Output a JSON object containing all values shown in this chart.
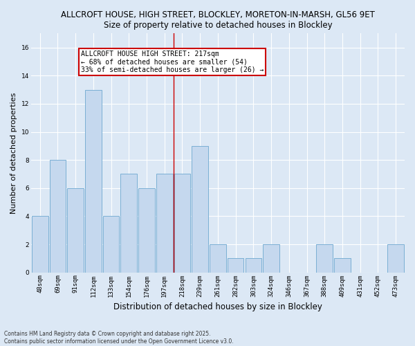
{
  "title1": "ALLCROFT HOUSE, HIGH STREET, BLOCKLEY, MORETON-IN-MARSH, GL56 9ET",
  "title2": "Size of property relative to detached houses in Blockley",
  "xlabel": "Distribution of detached houses by size in Blockley",
  "ylabel": "Number of detached properties",
  "categories": [
    "48sqm",
    "69sqm",
    "91sqm",
    "112sqm",
    "133sqm",
    "154sqm",
    "176sqm",
    "197sqm",
    "218sqm",
    "239sqm",
    "261sqm",
    "282sqm",
    "303sqm",
    "324sqm",
    "346sqm",
    "367sqm",
    "388sqm",
    "409sqm",
    "431sqm",
    "452sqm",
    "473sqm"
  ],
  "values": [
    4,
    8,
    6,
    13,
    4,
    7,
    6,
    7,
    7,
    9,
    2,
    1,
    1,
    2,
    0,
    0,
    2,
    1,
    0,
    0,
    2
  ],
  "bar_color": "#c5d8ee",
  "bar_edge_color": "#7aafd4",
  "vline_color": "#cc0000",
  "vline_x": 7.5,
  "annotation_text_line1": "ALLCROFT HOUSE HIGH STREET: 217sqm",
  "annotation_text_line2": "← 68% of detached houses are smaller (54)",
  "annotation_text_line3": "33% of semi-detached houses are larger (26) →",
  "annotation_box_color": "#ffffff",
  "annotation_box_edge": "#cc0000",
  "ylim": [
    0,
    17
  ],
  "yticks": [
    0,
    2,
    4,
    6,
    8,
    10,
    12,
    14,
    16
  ],
  "footnote": "Contains HM Land Registry data © Crown copyright and database right 2025.\nContains public sector information licensed under the Open Government Licence v3.0.",
  "bg_color": "#dce8f5",
  "plot_bg_color": "#dce8f5",
  "grid_color": "#ffffff",
  "title_fontsize": 8.5,
  "ylabel_fontsize": 8,
  "xlabel_fontsize": 8.5,
  "tick_fontsize": 6.5,
  "annot_fontsize": 7,
  "footnote_fontsize": 5.5
}
